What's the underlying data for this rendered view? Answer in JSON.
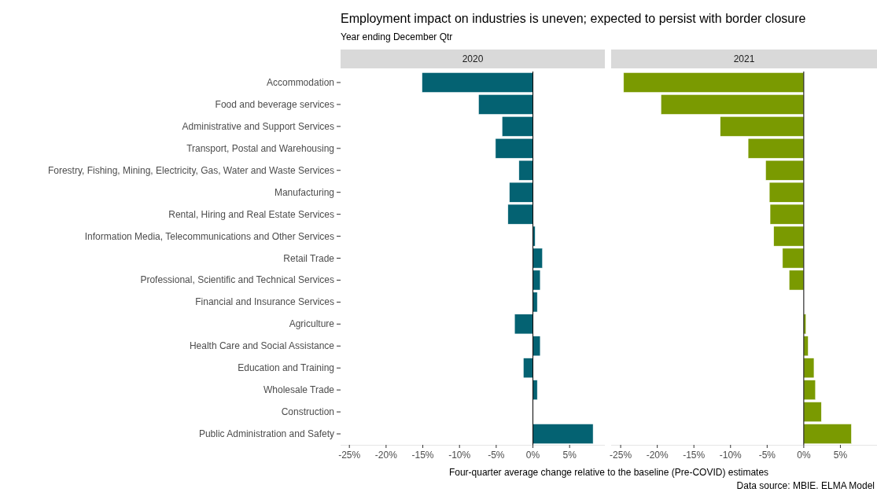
{
  "chart_data": [
    {
      "type": "bar",
      "orientation": "horizontal",
      "title": "Employment impact on industries is uneven; expected to persist with border closure",
      "subtitle": "Year ending December Qtr",
      "xlabel": "Four-quarter average change relative to the baseline (Pre-COVID) estimates",
      "annotations": [
        "Data source: MBIE. ELMA Model"
      ],
      "categories": [
        "Accommodation",
        "Food and beverage services",
        "Administrative and Support Services",
        "Transport, Postal and Warehousing",
        "Forestry, Fishing, Mining, Electricity, Gas, Water and Waste Services",
        "Manufacturing",
        "Rental, Hiring and Real Estate Services",
        "Information Media, Telecommunications and Other Services",
        "Retail Trade",
        "Professional, Scientific and Technical Services",
        "Financial and Insurance Services",
        "Agriculture",
        "Health Care and Social Assistance",
        "Education and Training",
        "Wholesale Trade",
        "Construction",
        "Public Administration and Safety"
      ],
      "series": [
        {
          "name": "2020",
          "color": "#046272",
          "values": [
            -15.1,
            -7.4,
            -4.2,
            -5.1,
            -1.9,
            -3.2,
            -3.4,
            0.3,
            1.3,
            1.0,
            0.6,
            -2.5,
            1.0,
            -1.3,
            0.6,
            0,
            8.2
          ]
        }
      ],
      "xlim": [
        -26.2,
        9.8
      ],
      "xticks": [
        {
          "value": -25,
          "label": "-25%"
        },
        {
          "value": -20,
          "label": "-20%"
        },
        {
          "value": -15,
          "label": "-15%"
        },
        {
          "value": -10,
          "label": "-10%"
        },
        {
          "value": -5,
          "label": "-5%"
        },
        {
          "value": 0,
          "label": "0%"
        },
        {
          "value": 5,
          "label": "5%"
        }
      ],
      "ref_lines": [
        {
          "axis": "x",
          "value": 0,
          "color": "#000000"
        }
      ],
      "grid": false
    },
    {
      "type": "bar",
      "orientation": "horizontal",
      "tick_labels": "x",
      "categories": [
        null,
        null,
        null,
        null,
        null,
        null,
        null,
        null,
        null,
        null,
        null,
        null,
        null,
        null,
        null,
        null,
        null
      ],
      "series": [
        {
          "name": "2021",
          "color": "#7a9a01",
          "values": [
            -24.6,
            -19.5,
            -11.4,
            -7.6,
            -5.2,
            -4.7,
            -4.6,
            -4.1,
            -2.9,
            -2.0,
            0,
            0.3,
            0.6,
            1.4,
            1.6,
            2.4,
            6.5
          ]
        }
      ],
      "xlim": [
        -26.3,
        10.0
      ],
      "xticks": [
        {
          "value": -25,
          "label": "-25%"
        },
        {
          "value": -20,
          "label": "-20%"
        },
        {
          "value": -15,
          "label": "-15%"
        },
        {
          "value": -10,
          "label": "-10%"
        },
        {
          "value": -5,
          "label": "-5%"
        },
        {
          "value": 0,
          "label": "0%"
        },
        {
          "value": 5,
          "label": "5%"
        }
      ],
      "ref_lines": [
        {
          "axis": "x",
          "value": 0,
          "color": "#000000"
        }
      ],
      "grid": false
    }
  ]
}
